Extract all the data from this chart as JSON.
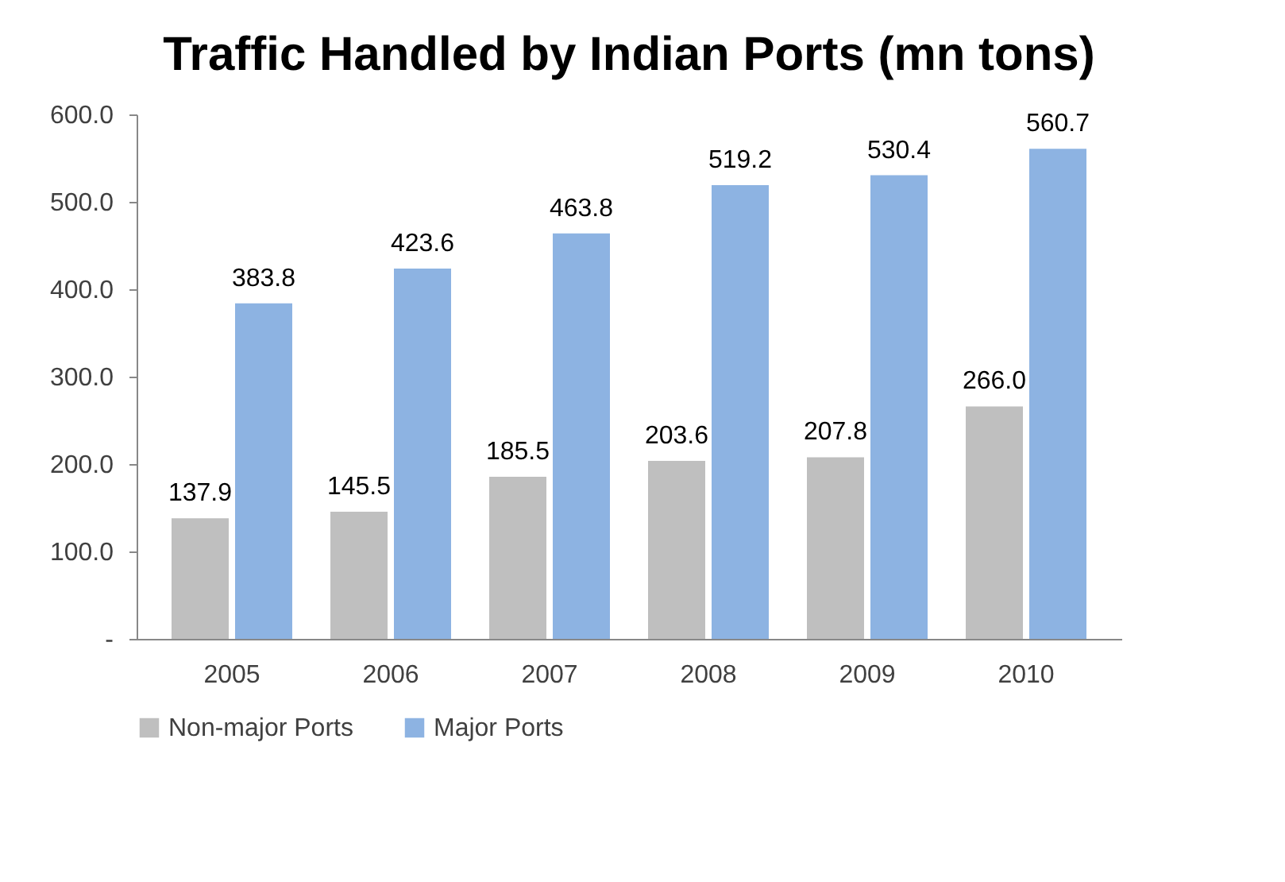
{
  "chart_data": {
    "type": "bar",
    "title": "Traffic Handled by Indian Ports (mn tons)",
    "categories": [
      "2005",
      "2006",
      "2007",
      "2008",
      "2009",
      "2010"
    ],
    "series": [
      {
        "name": "Non-major Ports",
        "color": "#bfbfbf",
        "values": [
          137.9,
          145.5,
          185.5,
          203.6,
          207.8,
          266.0
        ],
        "value_labels": [
          "137.9",
          "145.5",
          "185.5",
          "203.6",
          "207.8",
          "266.0"
        ]
      },
      {
        "name": "Major Ports",
        "color": "#8db3e2",
        "values": [
          383.8,
          423.6,
          463.8,
          519.2,
          530.4,
          560.7
        ],
        "value_labels": [
          "383.8",
          "423.6",
          "463.8",
          "519.2",
          "530.4",
          "560.7"
        ]
      }
    ],
    "ylim": [
      0,
      600
    ],
    "yticks": [
      {
        "value": 0,
        "label": "-"
      },
      {
        "value": 100,
        "label": "100.0"
      },
      {
        "value": 200,
        "label": "200.0"
      },
      {
        "value": 300,
        "label": "300.0"
      },
      {
        "value": 400,
        "label": "400.0"
      },
      {
        "value": 500,
        "label": "500.0"
      },
      {
        "value": 600,
        "label": "600.0"
      }
    ],
    "grid": false,
    "legend": "bottom"
  }
}
